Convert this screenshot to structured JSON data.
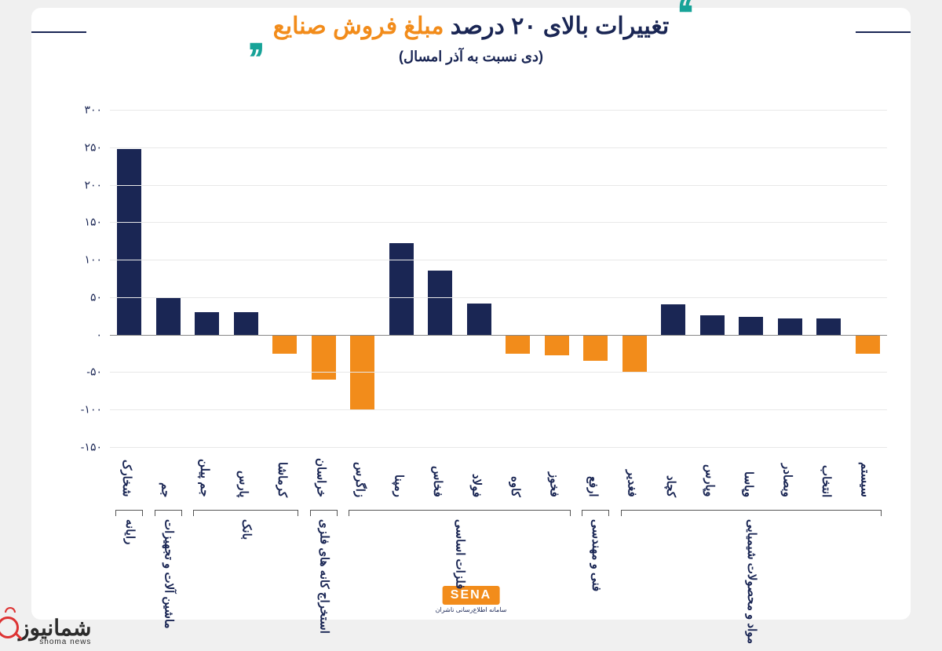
{
  "title": {
    "pre": "تغییرات بالای ۲۰ درصد ",
    "accent": "مبلغ فروش صنایع",
    "color_main": "#1a2654",
    "color_accent": "#f28c1b",
    "quote_color": "#17a398",
    "fontsize": 30
  },
  "subtitle": "(دی نسبت به آذر امسال)",
  "chart": {
    "type": "bar",
    "ylim": [
      -150,
      300
    ],
    "yticks": [
      -150,
      -100,
      -50,
      0,
      50,
      100,
      150,
      200,
      250,
      300
    ],
    "ytick_labels_fa": [
      "-۱۵۰",
      "-۱۰۰",
      "-۵۰",
      "۰",
      "۵۰",
      "۱۰۰",
      "۱۵۰",
      "۲۰۰",
      "۲۵۰",
      "۳۰۰"
    ],
    "grid_color": "#e8e8e8",
    "background_color": "#ffffff",
    "positive_color": "#1a2654",
    "negative_color": "#f28c1b",
    "label_fontsize": 14,
    "bar_width": 0.62,
    "bars": [
      {
        "label": "شخارک",
        "value": 248
      },
      {
        "label": "جم",
        "value": 50
      },
      {
        "label": "جم پیلن",
        "value": 30
      },
      {
        "label": "پارس",
        "value": 30
      },
      {
        "label": "کرماشا",
        "value": -25
      },
      {
        "label": "خراسان",
        "value": -60
      },
      {
        "label": "زاگرس",
        "value": -100
      },
      {
        "label": "رمپنا",
        "value": 122
      },
      {
        "label": "فخاس",
        "value": 85
      },
      {
        "label": "فولاد",
        "value": 42
      },
      {
        "label": "کاوه",
        "value": -25
      },
      {
        "label": "فخوز",
        "value": -28
      },
      {
        "label": "ارفع",
        "value": -35
      },
      {
        "label": "فغدیر",
        "value": -50
      },
      {
        "label": "کچاد",
        "value": 40
      },
      {
        "label": "وپارس",
        "value": 26
      },
      {
        "label": "وپاسا",
        "value": 24
      },
      {
        "label": "وبصادر",
        "value": 22
      },
      {
        "label": "انتخاب",
        "value": 22
      },
      {
        "label": "سیستم",
        "value": -25
      }
    ],
    "groups": [
      {
        "label": "مواد و محصولات شیمیایی",
        "from": 0,
        "to": 6
      },
      {
        "label": "فنی و مهندسی",
        "from": 7,
        "to": 7
      },
      {
        "label": "فلزات اساسی",
        "from": 8,
        "to": 13
      },
      {
        "label": "استخراج کانه های فلزی",
        "from": 14,
        "to": 14
      },
      {
        "label": "بانک",
        "from": 15,
        "to": 17
      },
      {
        "label": "ماشین آلات و تجهیزات",
        "from": 18,
        "to": 18
      },
      {
        "label": "رایانه",
        "from": 19,
        "to": 19
      }
    ]
  },
  "footer": {
    "badge": "SENA",
    "sub": "سامانه اطلاع‌رسانی ناشران"
  },
  "watermark": {
    "main": "شمانیوز",
    "sub": "shoma news"
  }
}
